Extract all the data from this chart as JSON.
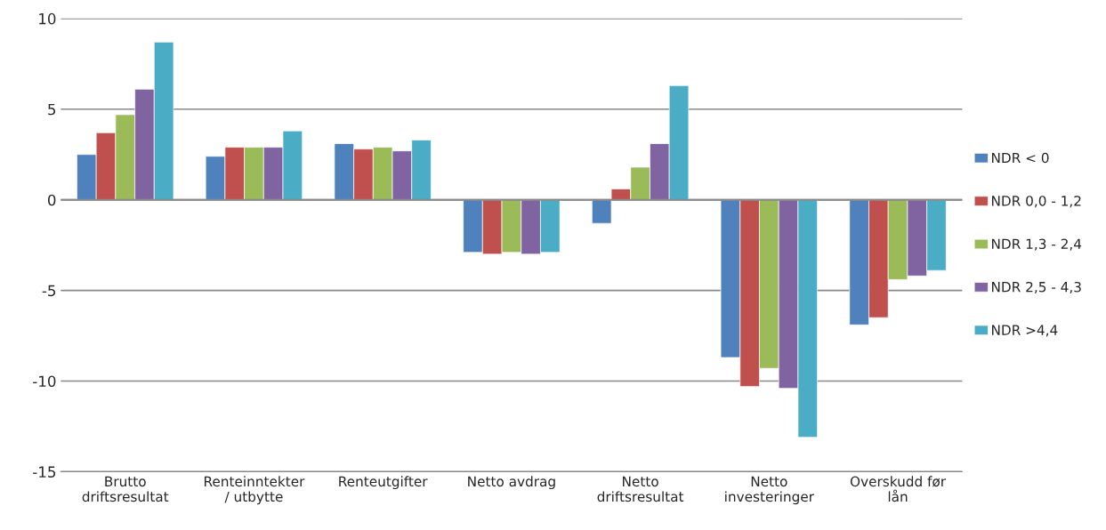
{
  "chart_data": {
    "type": "bar",
    "categories": [
      "Brutto\ndriftsresultat",
      "Renteinntekter\n/ utbytte",
      "Renteutgifter",
      "Netto avdrag",
      "Netto\ndriftsresultat",
      "Netto\ninvesteringer",
      "Overskudd før\nlån"
    ],
    "series": [
      {
        "name": "NDR < 0",
        "color": "#4f81bd",
        "values": [
          2.5,
          2.4,
          3.1,
          -2.9,
          -1.3,
          -8.7,
          -6.9
        ]
      },
      {
        "name": "NDR 0,0 - 1,2",
        "color": "#c0504d",
        "values": [
          3.7,
          2.9,
          2.8,
          -3.0,
          0.6,
          -10.3,
          -6.5
        ]
      },
      {
        "name": "NDR 1,3 - 2,4",
        "color": "#9bbb59",
        "values": [
          4.7,
          2.9,
          2.9,
          -2.9,
          1.8,
          -9.3,
          -4.4
        ]
      },
      {
        "name": "NDR 2,5 - 4,3",
        "color": "#8064a2",
        "values": [
          6.1,
          2.9,
          2.7,
          -3.0,
          3.1,
          -10.4,
          -4.2
        ]
      },
      {
        "name": "NDR >4,4",
        "color": "#4bacc6",
        "values": [
          8.7,
          3.8,
          3.3,
          -2.9,
          6.3,
          -13.1,
          -3.9
        ]
      }
    ],
    "ylim": [
      -15,
      10
    ],
    "yticks": [
      -15,
      -10,
      -5,
      0,
      5,
      10
    ],
    "grid": "y",
    "legend": "right"
  }
}
